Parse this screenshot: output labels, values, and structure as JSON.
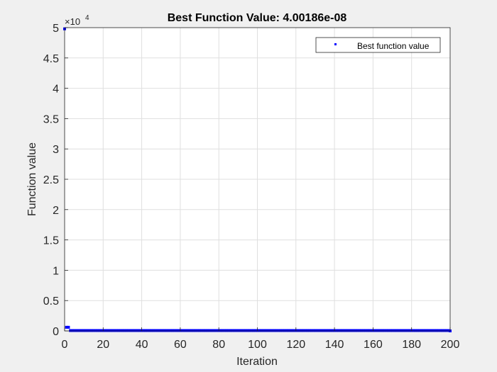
{
  "chart_data": {
    "type": "scatter",
    "title": "Best Function Value: 4.00186e-08",
    "xlabel": "Iteration",
    "ylabel": "Function value",
    "y_exponent_label": "×10",
    "y_exponent_power": "4",
    "xlim": [
      0,
      200
    ],
    "ylim": [
      0,
      50000
    ],
    "x_ticks": [
      0,
      20,
      40,
      60,
      80,
      100,
      120,
      140,
      160,
      180,
      200
    ],
    "x_tick_labels": [
      "0",
      "20",
      "40",
      "60",
      "80",
      "100",
      "120",
      "140",
      "160",
      "180",
      "200"
    ],
    "y_ticks": [
      0,
      5000,
      10000,
      15000,
      20000,
      25000,
      30000,
      35000,
      40000,
      45000,
      50000
    ],
    "y_tick_labels": [
      "0",
      "0.5",
      "1",
      "1.5",
      "2",
      "2.5",
      "3",
      "3.5",
      "4",
      "4.5",
      "5"
    ],
    "grid": true,
    "legend_position": "top-right",
    "series": [
      {
        "name": "Best function value",
        "color": "#0000ff",
        "marker": "point",
        "points": [
          [
            0,
            49800
          ],
          [
            1,
            600
          ],
          [
            2,
            600
          ],
          [
            3,
            60
          ],
          [
            200,
            0
          ]
        ]
      }
    ]
  }
}
